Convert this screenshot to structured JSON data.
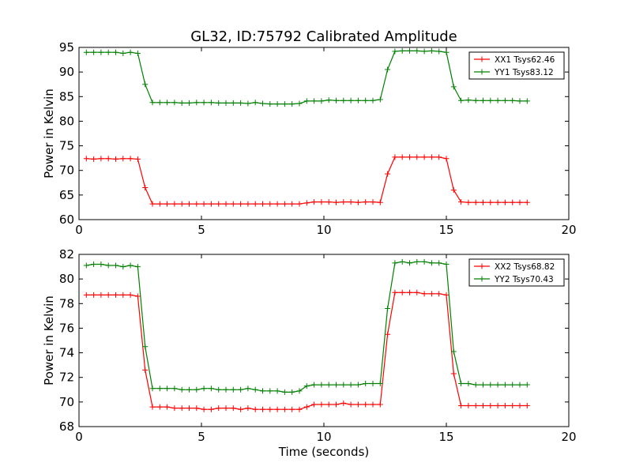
{
  "chart_data": [
    {
      "type": "line",
      "title": "GL32, ID:75792 Calibrated Amplitude",
      "xlabel": "",
      "ylabel": "Power in Kelvin",
      "xlim": [
        0,
        20
      ],
      "ylim": [
        60,
        95
      ],
      "xticks": [
        0,
        5,
        10,
        15,
        20
      ],
      "yticks": [
        60,
        65,
        70,
        75,
        80,
        85,
        90,
        95
      ],
      "legend_position": "top-right",
      "grid": false,
      "x": [
        0.3,
        0.6,
        0.9,
        1.2,
        1.5,
        1.8,
        2.1,
        2.4,
        2.7,
        3.0,
        3.3,
        3.6,
        3.9,
        4.2,
        4.5,
        4.8,
        5.1,
        5.4,
        5.7,
        6.0,
        6.3,
        6.6,
        6.9,
        7.2,
        7.5,
        7.8,
        8.1,
        8.4,
        8.7,
        9.0,
        9.3,
        9.6,
        9.9,
        10.2,
        10.5,
        10.8,
        11.1,
        11.4,
        11.7,
        12.0,
        12.3,
        12.6,
        12.9,
        13.2,
        13.5,
        13.8,
        14.1,
        14.4,
        14.7,
        15.0,
        15.3,
        15.6,
        15.9,
        16.2,
        16.5,
        16.8,
        17.1,
        17.4,
        17.7,
        18.0,
        18.3
      ],
      "series": [
        {
          "name": "XX1 Tsys62.46",
          "color": "#ff0000",
          "values": [
            72.4,
            72.3,
            72.4,
            72.4,
            72.3,
            72.4,
            72.4,
            72.3,
            66.5,
            63.2,
            63.2,
            63.2,
            63.2,
            63.2,
            63.2,
            63.2,
            63.2,
            63.2,
            63.2,
            63.2,
            63.2,
            63.2,
            63.2,
            63.2,
            63.2,
            63.2,
            63.2,
            63.2,
            63.2,
            63.2,
            63.4,
            63.6,
            63.6,
            63.6,
            63.5,
            63.6,
            63.6,
            63.5,
            63.6,
            63.6,
            63.5,
            69.3,
            72.7,
            72.7,
            72.7,
            72.7,
            72.7,
            72.7,
            72.7,
            72.4,
            66.0,
            63.6,
            63.5,
            63.5,
            63.5,
            63.5,
            63.5,
            63.5,
            63.5,
            63.5,
            63.5
          ]
        },
        {
          "name": "YY1 Tsys83.12",
          "color": "#008000",
          "values": [
            94.0,
            94.0,
            94.0,
            94.0,
            94.0,
            93.8,
            94.0,
            93.8,
            87.5,
            83.8,
            83.8,
            83.8,
            83.8,
            83.7,
            83.7,
            83.8,
            83.8,
            83.8,
            83.7,
            83.7,
            83.7,
            83.7,
            83.6,
            83.8,
            83.6,
            83.5,
            83.5,
            83.5,
            83.5,
            83.6,
            84.1,
            84.1,
            84.1,
            84.3,
            84.2,
            84.2,
            84.2,
            84.2,
            84.2,
            84.2,
            84.4,
            90.5,
            94.2,
            94.3,
            94.3,
            94.3,
            94.2,
            94.3,
            94.2,
            94.0,
            87.0,
            84.2,
            84.3,
            84.2,
            84.2,
            84.2,
            84.2,
            84.2,
            84.2,
            84.1,
            84.1
          ]
        }
      ]
    },
    {
      "type": "line",
      "title": "",
      "xlabel": "Time (seconds)",
      "ylabel": "Power in Kelvin",
      "xlim": [
        0,
        20
      ],
      "ylim": [
        68,
        82
      ],
      "xticks": [
        0,
        5,
        10,
        15,
        20
      ],
      "yticks": [
        68,
        70,
        72,
        74,
        76,
        78,
        80,
        82
      ],
      "legend_position": "top-right",
      "grid": false,
      "x": [
        0.3,
        0.6,
        0.9,
        1.2,
        1.5,
        1.8,
        2.1,
        2.4,
        2.7,
        3.0,
        3.3,
        3.6,
        3.9,
        4.2,
        4.5,
        4.8,
        5.1,
        5.4,
        5.7,
        6.0,
        6.3,
        6.6,
        6.9,
        7.2,
        7.5,
        7.8,
        8.1,
        8.4,
        8.7,
        9.0,
        9.3,
        9.6,
        9.9,
        10.2,
        10.5,
        10.8,
        11.1,
        11.4,
        11.7,
        12.0,
        12.3,
        12.6,
        12.9,
        13.2,
        13.5,
        13.8,
        14.1,
        14.4,
        14.7,
        15.0,
        15.3,
        15.6,
        15.9,
        16.2,
        16.5,
        16.8,
        17.1,
        17.4,
        17.7,
        18.0,
        18.3
      ],
      "series": [
        {
          "name": "XX2 Tsys68.82",
          "color": "#ff0000",
          "values": [
            78.7,
            78.7,
            78.7,
            78.7,
            78.7,
            78.7,
            78.7,
            78.6,
            72.6,
            69.6,
            69.6,
            69.6,
            69.5,
            69.5,
            69.5,
            69.5,
            69.4,
            69.4,
            69.5,
            69.5,
            69.5,
            69.4,
            69.5,
            69.4,
            69.4,
            69.4,
            69.4,
            69.4,
            69.4,
            69.4,
            69.6,
            69.8,
            69.8,
            69.8,
            69.8,
            69.9,
            69.8,
            69.8,
            69.8,
            69.8,
            69.8,
            75.5,
            78.9,
            78.9,
            78.9,
            78.9,
            78.8,
            78.8,
            78.8,
            78.7,
            72.3,
            69.7,
            69.7,
            69.7,
            69.7,
            69.7,
            69.7,
            69.7,
            69.7,
            69.7,
            69.7
          ]
        },
        {
          "name": "YY2 Tsys70.43",
          "color": "#008000",
          "values": [
            81.1,
            81.2,
            81.2,
            81.1,
            81.1,
            81.0,
            81.1,
            81.0,
            74.5,
            71.1,
            71.1,
            71.1,
            71.1,
            71.0,
            71.0,
            71.0,
            71.1,
            71.1,
            71.0,
            71.0,
            71.0,
            71.0,
            71.1,
            71.0,
            70.9,
            70.9,
            70.9,
            70.8,
            70.8,
            70.9,
            71.3,
            71.4,
            71.4,
            71.4,
            71.4,
            71.4,
            71.4,
            71.4,
            71.5,
            71.5,
            71.5,
            77.6,
            81.3,
            81.4,
            81.3,
            81.4,
            81.4,
            81.3,
            81.3,
            81.2,
            74.1,
            71.5,
            71.5,
            71.4,
            71.4,
            71.4,
            71.4,
            71.4,
            71.4,
            71.4,
            71.4
          ]
        }
      ]
    }
  ]
}
